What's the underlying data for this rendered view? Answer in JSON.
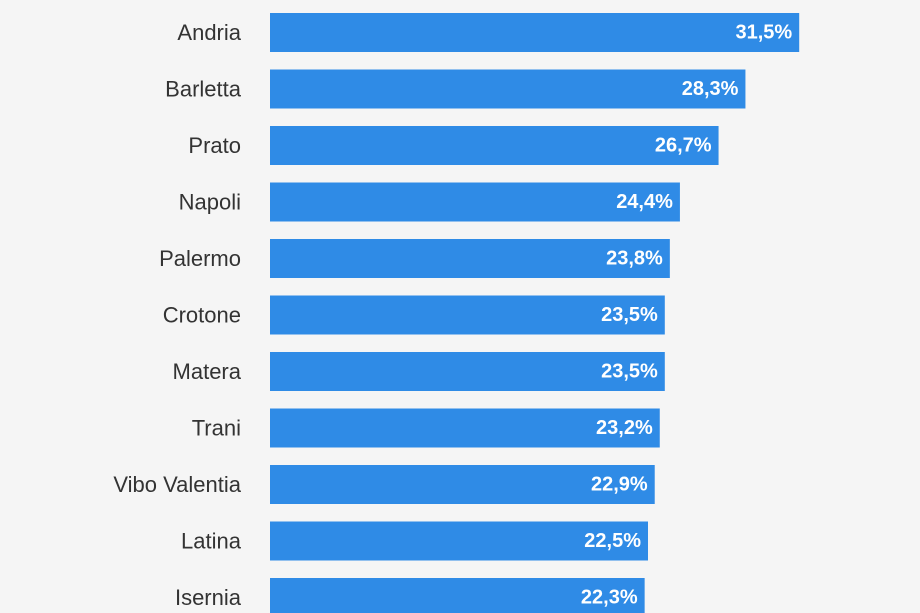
{
  "chart_data": {
    "type": "bar",
    "orientation": "horizontal",
    "categories": [
      "Andria",
      "Barletta",
      "Prato",
      "Napoli",
      "Palermo",
      "Crotone",
      "Matera",
      "Trani",
      "Vibo Valentia",
      "Latina",
      "Isernia"
    ],
    "values": [
      31.5,
      28.3,
      26.7,
      24.4,
      23.8,
      23.5,
      23.5,
      23.2,
      22.9,
      22.5,
      22.3
    ],
    "value_labels": [
      "31,5%",
      "28,3%",
      "26,7%",
      "24,4%",
      "23,8%",
      "23,5%",
      "23,5%",
      "23,2%",
      "22,9%",
      "22,5%",
      "22,3%"
    ],
    "unit": "%",
    "title": "",
    "xlabel": "",
    "ylabel": "",
    "xlim": [
      0,
      50
    ],
    "grid": false,
    "bar_color": "#2f8be6",
    "label_color": "#333333",
    "background": "#f5f5f5"
  }
}
